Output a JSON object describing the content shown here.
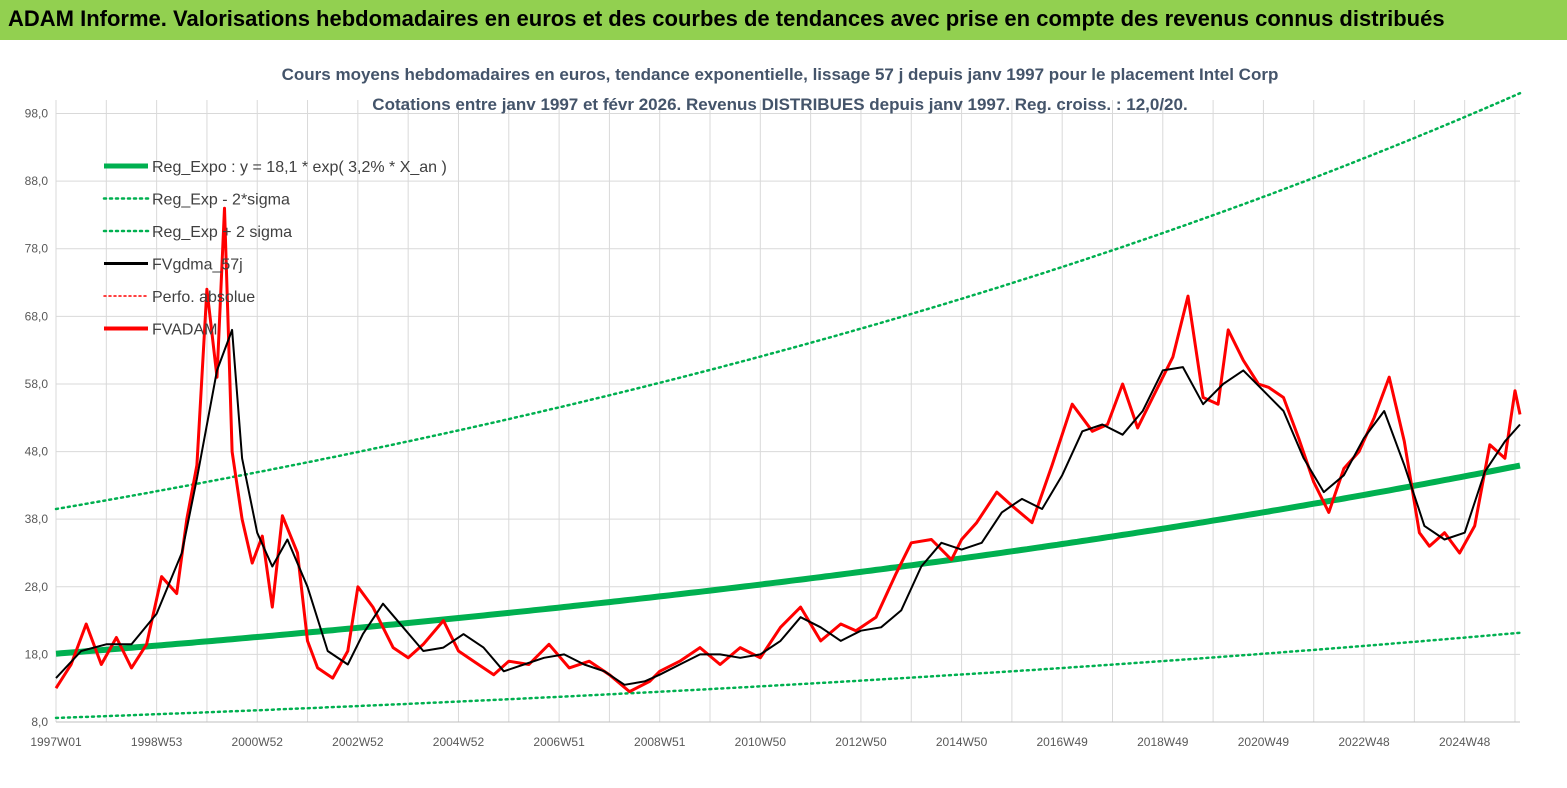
{
  "banner": {
    "title": "ADAM Informe. Valorisations hebdomadaires en euros et des courbes de tendances avec prise en compte des revenus connus distribués"
  },
  "colors": {
    "banner": "#92d050",
    "reg_expo": "#00b050",
    "bands": "#00b050",
    "fvgdma": "#000000",
    "perfo": "#ff0000",
    "fvadam": "#ff0000",
    "grid": "#d9d9d9"
  },
  "chart_data": {
    "type": "line",
    "title_line1": "Cours moyens hebdomadaires en euros, tendance exponentielle, lissage 57 j depuis janv 1997 pour le placement Intel Corp",
    "title_line2": "Cotations entre janv 1997 et févr 2026. Revenus DISTRIBUES depuis janv 1997. Reg. croiss. : 12,0/20.",
    "xlabel": "",
    "ylabel": "",
    "xlim": [
      1997.0,
      2026.1
    ],
    "ylim": [
      8,
      100
    ],
    "y_ticks": [
      "8,0",
      "18,0",
      "28,0",
      "38,0",
      "48,0",
      "58,0",
      "68,0",
      "78,0",
      "88,0",
      "98,0"
    ],
    "y_tick_values": [
      8,
      18,
      28,
      38,
      48,
      58,
      68,
      78,
      88,
      98
    ],
    "x_ticks": [
      "1997W01",
      "1998W53",
      "2000W52",
      "2002W52",
      "2004W52",
      "2006W51",
      "2008W51",
      "2010W50",
      "2012W50",
      "2014W50",
      "2016W49",
      "2018W49",
      "2020W49",
      "2022W48",
      "2024W48"
    ],
    "x_tick_values": [
      1997.0,
      1999.0,
      2001.0,
      2003.0,
      2005.0,
      2007.0,
      2009.0,
      2011.0,
      2013.0,
      2015.0,
      2017.0,
      2019.0,
      2021.0,
      2023.0,
      2025.0
    ],
    "grid": true,
    "legend_position": "top-left",
    "legend": [
      {
        "key": "reg_expo",
        "label": "Reg_Expo : y = 18,1 * exp( 3,2% *  X_an )"
      },
      {
        "key": "reg_minus",
        "label": "Reg_Exp - 2*sigma"
      },
      {
        "key": "reg_plus",
        "label": "Reg_Exp + 2 sigma"
      },
      {
        "key": "fvgdma",
        "label": "FVgdma_57j"
      },
      {
        "key": "perfo",
        "label": "Perfo. absolue"
      },
      {
        "key": "fvadam",
        "label": "FVADAM"
      }
    ],
    "reg_expo": {
      "start_value": 18.1,
      "growth_rate": 0.032,
      "x_start": 1997.0,
      "x_end": 2026.1
    },
    "reg_minus": {
      "x": [
        1997.0,
        2026.1
      ],
      "values": [
        8.6,
        21.2
      ]
    },
    "reg_plus": {
      "x": [
        1997.0,
        2026.1
      ],
      "values": [
        39.5,
        101.0
      ]
    },
    "series": [
      {
        "name": "FVADAM",
        "x": [
          1997.0,
          1997.3,
          1997.6,
          1997.9,
          1998.2,
          1998.5,
          1998.8,
          1999.1,
          1999.4,
          1999.6,
          1999.8,
          2000.0,
          2000.2,
          2000.35,
          2000.5,
          2000.7,
          2000.9,
          2001.1,
          2001.3,
          2001.5,
          2001.8,
          2002.0,
          2002.2,
          2002.5,
          2002.8,
          2003.0,
          2003.3,
          2003.7,
          2004.0,
          2004.3,
          2004.7,
          2005.0,
          2005.3,
          2005.7,
          2006.0,
          2006.4,
          2006.8,
          2007.2,
          2007.6,
          2008.0,
          2008.4,
          2008.8,
          2009.0,
          2009.4,
          2009.8,
          2010.2,
          2010.6,
          2011.0,
          2011.4,
          2011.8,
          2012.2,
          2012.6,
          2012.9,
          2013.3,
          2013.7,
          2014.0,
          2014.4,
          2014.8,
          2015.0,
          2015.3,
          2015.7,
          2016.0,
          2016.4,
          2016.8,
          2017.2,
          2017.6,
          2017.9,
          2018.2,
          2018.5,
          2018.8,
          2019.2,
          2019.5,
          2019.8,
          2020.1,
          2020.3,
          2020.6,
          2020.9,
          2021.1,
          2021.4,
          2021.7,
          2022.0,
          2022.3,
          2022.6,
          2022.9,
          2023.2,
          2023.5,
          2023.8,
          2024.1,
          2024.3,
          2024.6,
          2024.9,
          2025.2,
          2025.5,
          2025.8,
          2026.0,
          2026.1
        ],
        "values": [
          13.0,
          16.5,
          22.5,
          16.5,
          20.5,
          16.0,
          19.5,
          29.5,
          27.0,
          38.0,
          46.0,
          72.0,
          59.0,
          84.0,
          48.0,
          38.0,
          31.5,
          35.5,
          25.0,
          38.5,
          33.0,
          20.0,
          16.0,
          14.5,
          18.5,
          28.0,
          25.0,
          19.0,
          17.5,
          19.5,
          23.0,
          18.5,
          17.0,
          15.0,
          17.0,
          16.5,
          19.5,
          16.0,
          17.0,
          15.0,
          12.5,
          14.0,
          15.5,
          17.0,
          19.0,
          16.5,
          19.0,
          17.5,
          22.0,
          25.0,
          20.0,
          22.5,
          21.5,
          23.5,
          30.0,
          34.5,
          35.0,
          32.0,
          35.0,
          37.5,
          42.0,
          40.0,
          37.5,
          46.0,
          55.0,
          51.0,
          52.0,
          58.0,
          51.5,
          56.0,
          62.0,
          71.0,
          56.0,
          55.0,
          66.0,
          61.5,
          58.0,
          57.5,
          56.0,
          50.0,
          43.5,
          39.0,
          45.5,
          48.0,
          53.0,
          59.0,
          49.5,
          36.0,
          34.0,
          36.0,
          33.0,
          37.0,
          49.0,
          47.0,
          57.0,
          53.5
        ]
      },
      {
        "name": "FVgdma_57j",
        "x": [
          1997.0,
          1997.5,
          1998.0,
          1998.5,
          1999.0,
          1999.5,
          1999.8,
          2000.2,
          2000.5,
          2000.7,
          2001.0,
          2001.3,
          2001.6,
          2002.0,
          2002.4,
          2002.8,
          2003.1,
          2003.5,
          2003.9,
          2004.3,
          2004.7,
          2005.1,
          2005.5,
          2005.9,
          2006.3,
          2006.7,
          2007.1,
          2007.5,
          2007.9,
          2008.3,
          2008.7,
          2009.0,
          2009.4,
          2009.8,
          2010.2,
          2010.6,
          2011.0,
          2011.4,
          2011.8,
          2012.2,
          2012.6,
          2013.0,
          2013.4,
          2013.8,
          2014.2,
          2014.6,
          2015.0,
          2015.4,
          2015.8,
          2016.2,
          2016.6,
          2017.0,
          2017.4,
          2017.8,
          2018.2,
          2018.6,
          2019.0,
          2019.4,
          2019.8,
          2020.2,
          2020.6,
          2021.0,
          2021.4,
          2021.8,
          2022.2,
          2022.6,
          2023.0,
          2023.4,
          2023.8,
          2024.2,
          2024.6,
          2025.0,
          2025.4,
          2025.8,
          2026.1
        ],
        "values": [
          14.5,
          18.5,
          19.5,
          19.5,
          24.0,
          33.0,
          44.0,
          60.0,
          66.0,
          47.0,
          36.0,
          31.0,
          35.0,
          28.0,
          18.5,
          16.5,
          21.0,
          25.5,
          22.0,
          18.5,
          19.0,
          21.0,
          19.0,
          15.5,
          16.5,
          17.5,
          18.0,
          16.5,
          15.5,
          13.5,
          14.0,
          15.0,
          16.5,
          18.0,
          18.0,
          17.5,
          18.0,
          20.0,
          23.5,
          22.0,
          20.0,
          21.5,
          22.0,
          24.5,
          31.0,
          34.5,
          33.5,
          34.5,
          39.0,
          41.0,
          39.5,
          44.5,
          51.0,
          52.0,
          50.5,
          54.0,
          60.0,
          60.5,
          55.0,
          58.0,
          60.0,
          57.0,
          54.0,
          47.0,
          42.0,
          44.5,
          50.0,
          54.0,
          46.0,
          37.0,
          35.0,
          36.0,
          45.0,
          49.5,
          52.0
        ]
      }
    ]
  }
}
